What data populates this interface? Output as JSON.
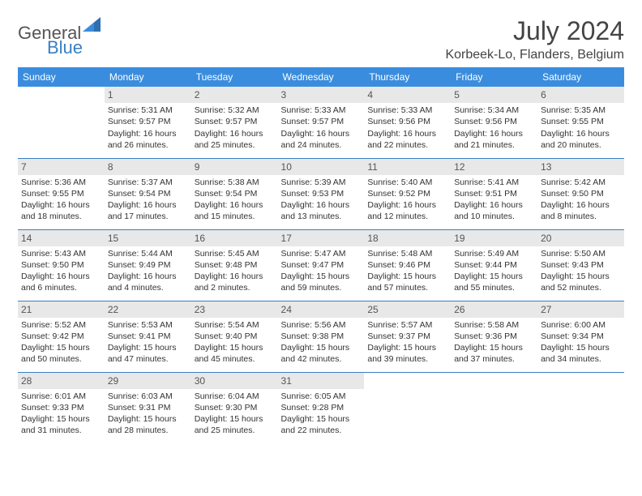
{
  "logo": {
    "text1": "General",
    "text2": "Blue"
  },
  "title": "July 2024",
  "location": "Korbeek-Lo, Flanders, Belgium",
  "colors": {
    "header_bg": "#3a8dde",
    "header_fg": "#ffffff",
    "rule": "#3a7fc4",
    "daynum_bg": "#e8e8e8",
    "text": "#333333"
  },
  "day_names": [
    "Sunday",
    "Monday",
    "Tuesday",
    "Wednesday",
    "Thursday",
    "Friday",
    "Saturday"
  ],
  "weeks": [
    [
      {
        "num": "",
        "lines": []
      },
      {
        "num": "1",
        "lines": [
          "Sunrise: 5:31 AM",
          "Sunset: 9:57 PM",
          "Daylight: 16 hours",
          "and 26 minutes."
        ]
      },
      {
        "num": "2",
        "lines": [
          "Sunrise: 5:32 AM",
          "Sunset: 9:57 PM",
          "Daylight: 16 hours",
          "and 25 minutes."
        ]
      },
      {
        "num": "3",
        "lines": [
          "Sunrise: 5:33 AM",
          "Sunset: 9:57 PM",
          "Daylight: 16 hours",
          "and 24 minutes."
        ]
      },
      {
        "num": "4",
        "lines": [
          "Sunrise: 5:33 AM",
          "Sunset: 9:56 PM",
          "Daylight: 16 hours",
          "and 22 minutes."
        ]
      },
      {
        "num": "5",
        "lines": [
          "Sunrise: 5:34 AM",
          "Sunset: 9:56 PM",
          "Daylight: 16 hours",
          "and 21 minutes."
        ]
      },
      {
        "num": "6",
        "lines": [
          "Sunrise: 5:35 AM",
          "Sunset: 9:55 PM",
          "Daylight: 16 hours",
          "and 20 minutes."
        ]
      }
    ],
    [
      {
        "num": "7",
        "lines": [
          "Sunrise: 5:36 AM",
          "Sunset: 9:55 PM",
          "Daylight: 16 hours",
          "and 18 minutes."
        ]
      },
      {
        "num": "8",
        "lines": [
          "Sunrise: 5:37 AM",
          "Sunset: 9:54 PM",
          "Daylight: 16 hours",
          "and 17 minutes."
        ]
      },
      {
        "num": "9",
        "lines": [
          "Sunrise: 5:38 AM",
          "Sunset: 9:54 PM",
          "Daylight: 16 hours",
          "and 15 minutes."
        ]
      },
      {
        "num": "10",
        "lines": [
          "Sunrise: 5:39 AM",
          "Sunset: 9:53 PM",
          "Daylight: 16 hours",
          "and 13 minutes."
        ]
      },
      {
        "num": "11",
        "lines": [
          "Sunrise: 5:40 AM",
          "Sunset: 9:52 PM",
          "Daylight: 16 hours",
          "and 12 minutes."
        ]
      },
      {
        "num": "12",
        "lines": [
          "Sunrise: 5:41 AM",
          "Sunset: 9:51 PM",
          "Daylight: 16 hours",
          "and 10 minutes."
        ]
      },
      {
        "num": "13",
        "lines": [
          "Sunrise: 5:42 AM",
          "Sunset: 9:50 PM",
          "Daylight: 16 hours",
          "and 8 minutes."
        ]
      }
    ],
    [
      {
        "num": "14",
        "lines": [
          "Sunrise: 5:43 AM",
          "Sunset: 9:50 PM",
          "Daylight: 16 hours",
          "and 6 minutes."
        ]
      },
      {
        "num": "15",
        "lines": [
          "Sunrise: 5:44 AM",
          "Sunset: 9:49 PM",
          "Daylight: 16 hours",
          "and 4 minutes."
        ]
      },
      {
        "num": "16",
        "lines": [
          "Sunrise: 5:45 AM",
          "Sunset: 9:48 PM",
          "Daylight: 16 hours",
          "and 2 minutes."
        ]
      },
      {
        "num": "17",
        "lines": [
          "Sunrise: 5:47 AM",
          "Sunset: 9:47 PM",
          "Daylight: 15 hours",
          "and 59 minutes."
        ]
      },
      {
        "num": "18",
        "lines": [
          "Sunrise: 5:48 AM",
          "Sunset: 9:46 PM",
          "Daylight: 15 hours",
          "and 57 minutes."
        ]
      },
      {
        "num": "19",
        "lines": [
          "Sunrise: 5:49 AM",
          "Sunset: 9:44 PM",
          "Daylight: 15 hours",
          "and 55 minutes."
        ]
      },
      {
        "num": "20",
        "lines": [
          "Sunrise: 5:50 AM",
          "Sunset: 9:43 PM",
          "Daylight: 15 hours",
          "and 52 minutes."
        ]
      }
    ],
    [
      {
        "num": "21",
        "lines": [
          "Sunrise: 5:52 AM",
          "Sunset: 9:42 PM",
          "Daylight: 15 hours",
          "and 50 minutes."
        ]
      },
      {
        "num": "22",
        "lines": [
          "Sunrise: 5:53 AM",
          "Sunset: 9:41 PM",
          "Daylight: 15 hours",
          "and 47 minutes."
        ]
      },
      {
        "num": "23",
        "lines": [
          "Sunrise: 5:54 AM",
          "Sunset: 9:40 PM",
          "Daylight: 15 hours",
          "and 45 minutes."
        ]
      },
      {
        "num": "24",
        "lines": [
          "Sunrise: 5:56 AM",
          "Sunset: 9:38 PM",
          "Daylight: 15 hours",
          "and 42 minutes."
        ]
      },
      {
        "num": "25",
        "lines": [
          "Sunrise: 5:57 AM",
          "Sunset: 9:37 PM",
          "Daylight: 15 hours",
          "and 39 minutes."
        ]
      },
      {
        "num": "26",
        "lines": [
          "Sunrise: 5:58 AM",
          "Sunset: 9:36 PM",
          "Daylight: 15 hours",
          "and 37 minutes."
        ]
      },
      {
        "num": "27",
        "lines": [
          "Sunrise: 6:00 AM",
          "Sunset: 9:34 PM",
          "Daylight: 15 hours",
          "and 34 minutes."
        ]
      }
    ],
    [
      {
        "num": "28",
        "lines": [
          "Sunrise: 6:01 AM",
          "Sunset: 9:33 PM",
          "Daylight: 15 hours",
          "and 31 minutes."
        ]
      },
      {
        "num": "29",
        "lines": [
          "Sunrise: 6:03 AM",
          "Sunset: 9:31 PM",
          "Daylight: 15 hours",
          "and 28 minutes."
        ]
      },
      {
        "num": "30",
        "lines": [
          "Sunrise: 6:04 AM",
          "Sunset: 9:30 PM",
          "Daylight: 15 hours",
          "and 25 minutes."
        ]
      },
      {
        "num": "31",
        "lines": [
          "Sunrise: 6:05 AM",
          "Sunset: 9:28 PM",
          "Daylight: 15 hours",
          "and 22 minutes."
        ]
      },
      {
        "num": "",
        "lines": []
      },
      {
        "num": "",
        "lines": []
      },
      {
        "num": "",
        "lines": []
      }
    ]
  ]
}
